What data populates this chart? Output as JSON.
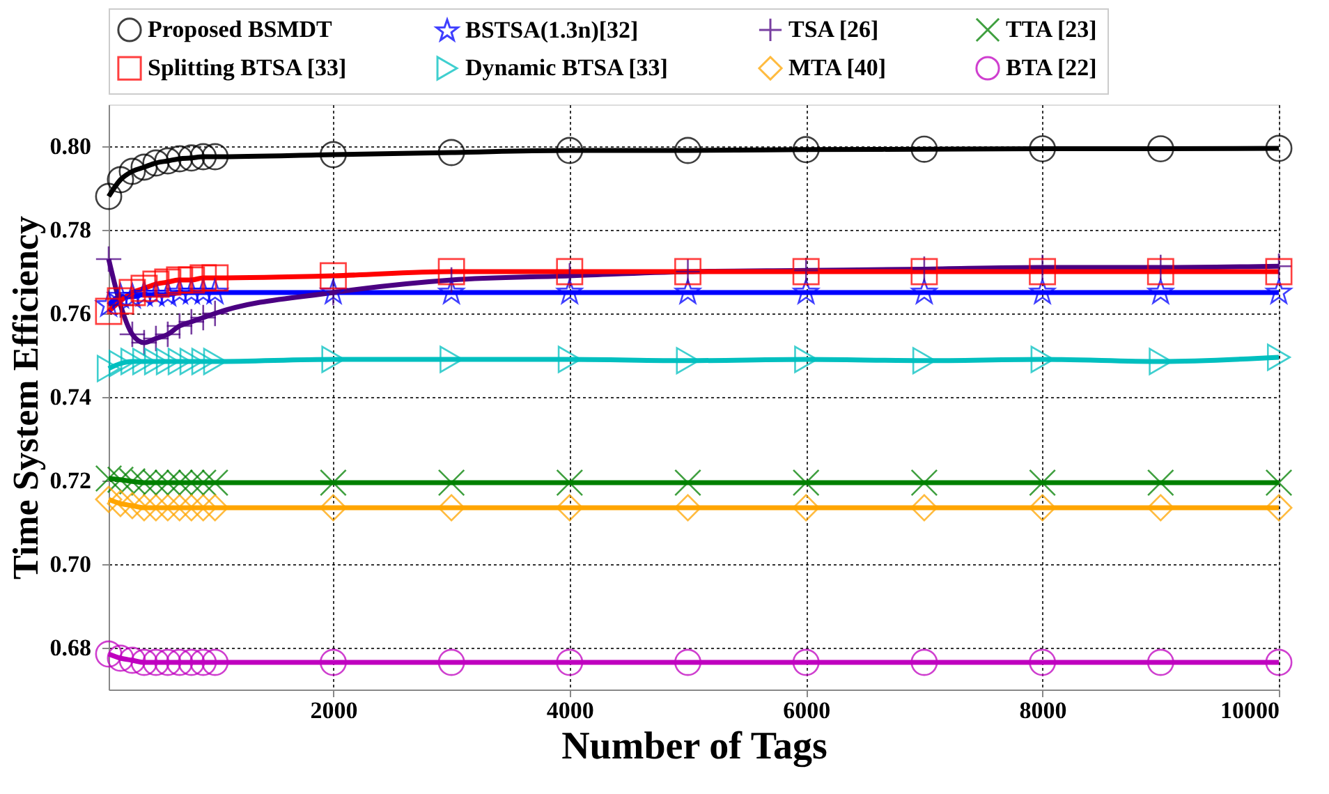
{
  "chart_data": {
    "type": "line",
    "xlabel": "Number of Tags",
    "ylabel": "Time System Efficiency",
    "x": [
      100,
      200,
      300,
      400,
      500,
      600,
      700,
      800,
      900,
      1000,
      2000,
      3000,
      4000,
      5000,
      6000,
      7000,
      8000,
      9000,
      10000
    ],
    "xlim": [
      100,
      10000
    ],
    "xticks": [
      2000,
      4000,
      6000,
      8000,
      10000
    ],
    "ylim": [
      0.67,
      0.81
    ],
    "yticks": [
      {
        "value": 0.68,
        "label": "0.68"
      },
      {
        "value": 0.7,
        "label": "0.70"
      },
      {
        "value": 0.72,
        "label": "0.72"
      },
      {
        "value": 0.74,
        "label": "0.74"
      },
      {
        "value": 0.76,
        "label": "0.76"
      },
      {
        "value": 0.78,
        "label": "0.78"
      },
      {
        "value": 0.8,
        "label": "0.80"
      }
    ],
    "grid": true,
    "legend": "top",
    "line_style": "solid",
    "series": [
      {
        "name": "Proposed BSMDT",
        "color": "#000000",
        "marker": "circle",
        "values": [
          0.788,
          0.792,
          0.794,
          0.795,
          0.796,
          0.7965,
          0.797,
          0.7972,
          0.7975,
          0.7975,
          0.798,
          0.7985,
          0.799,
          0.799,
          0.7992,
          0.7993,
          0.7994,
          0.7994,
          0.7995
        ]
      },
      {
        "name": "BSTSA(1.3n)[32]",
        "color": "#0000ff",
        "marker": "star",
        "values": [
          0.762,
          0.764,
          0.764,
          0.7645,
          0.7645,
          0.7645,
          0.765,
          0.765,
          0.765,
          0.765,
          0.765,
          0.765,
          0.765,
          0.765,
          0.765,
          0.765,
          0.765,
          0.765,
          0.765
        ]
      },
      {
        "name": "TSA [26]",
        "color": "#4b0082",
        "marker": "cross",
        "values": [
          0.773,
          0.762,
          0.755,
          0.753,
          0.754,
          0.755,
          0.757,
          0.758,
          0.759,
          0.76,
          0.765,
          0.768,
          0.769,
          0.77,
          0.7703,
          0.7706,
          0.771,
          0.771,
          0.7713
        ]
      },
      {
        "name": "TTA [23]",
        "color": "#008000",
        "marker": "x",
        "values": [
          0.7205,
          0.7202,
          0.7198,
          0.7195,
          0.7195,
          0.7195,
          0.7195,
          0.7195,
          0.7195,
          0.7195,
          0.7195,
          0.7195,
          0.7195,
          0.7195,
          0.7195,
          0.7195,
          0.7195,
          0.7195,
          0.7195
        ]
      },
      {
        "name": "Splitting BTSA [33]",
        "color": "#ff0000",
        "marker": "square",
        "values": [
          0.7605,
          0.763,
          0.765,
          0.766,
          0.767,
          0.7675,
          0.768,
          0.768,
          0.7685,
          0.7685,
          0.769,
          0.77,
          0.77,
          0.77,
          0.77,
          0.77,
          0.77,
          0.77,
          0.77
        ]
      },
      {
        "name": "Dynamic BTSA [33]",
        "color": "#00bfbf",
        "marker": "triangle-right",
        "values": [
          0.7468,
          0.748,
          0.7485,
          0.7485,
          0.7485,
          0.7485,
          0.7485,
          0.7485,
          0.7485,
          0.7485,
          0.749,
          0.749,
          0.749,
          0.7487,
          0.749,
          0.7487,
          0.749,
          0.7485,
          0.7495
        ]
      },
      {
        "name": "MTA [40]",
        "color": "#ffa500",
        "marker": "diamond",
        "values": [
          0.7155,
          0.7145,
          0.714,
          0.7135,
          0.7135,
          0.7135,
          0.7135,
          0.7135,
          0.7135,
          0.7135,
          0.7135,
          0.7135,
          0.7135,
          0.7135,
          0.7135,
          0.7135,
          0.7135,
          0.7135,
          0.7135
        ]
      },
      {
        "name": "BTA [22]",
        "color": "#bf00bf",
        "marker": "circle",
        "values": [
          0.6785,
          0.6775,
          0.677,
          0.6765,
          0.6765,
          0.6765,
          0.6765,
          0.6765,
          0.6765,
          0.6765,
          0.6765,
          0.6765,
          0.6765,
          0.6765,
          0.6765,
          0.6765,
          0.6765,
          0.6765,
          0.6765
        ]
      }
    ]
  }
}
